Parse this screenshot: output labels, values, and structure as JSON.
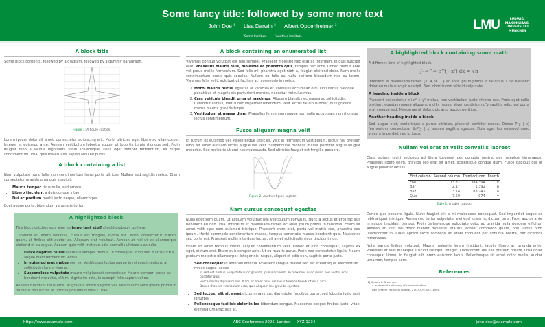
{
  "header": {
    "title": "Some fancy title: followed by some more text",
    "authors": [
      {
        "name": "John Doe",
        "sup": "1"
      },
      {
        "name": "Lisa Darwin",
        "sup": "2"
      },
      {
        "name": "Albert Oppenheimer",
        "sup": "2"
      }
    ],
    "institutes": [
      {
        "sup": "1",
        "name": "Some Institute"
      },
      {
        "sup": "2",
        "name": "Another Institute"
      }
    ],
    "logo": {
      "mark": "LMU",
      "lines": [
        "LUDWIG-",
        "MAXIMILIANS-",
        "UNIVERSITÄT",
        "MÜNCHEN"
      ]
    }
  },
  "col1": {
    "block1": {
      "title": "A block title",
      "intro": "Some block contents, followed by a diagram, followed by a dummy paragraph.",
      "fig_label": "Figure 1:",
      "fig_caption": "A figure caption.",
      "para": "Lorem ipsum dolor sit amet, consectetur adipiscing elit. Morbi ultricies eget libero ac ullamcorper. Integer et euismod ante. Aenean vestibulum lobortis augue, ut lobortis turpis rhoncus sed. Proin feugiat nibh a lacinia dignissim. Proin scelerisque, risus eget tempor fermentum, ex turpis condimentum urna, quis malesuada sapien arcu eu purus."
    },
    "block2": {
      "title": "A block containing a list",
      "intro": "Nam vulputate nunc felis, non condimentum lacus porta ultrices. Nullam sed sagittis metus. Etiam consectetur gravida urna quis suscipit.",
      "items": [
        {
          "b": "Mauris tempor",
          "t": " risus nulla, sed ornare"
        },
        {
          "b": "Libero tincidunt",
          "t": " a duis congue vitae"
        },
        {
          "b": "Dui ac pretium",
          "t": " morbi justo neque, ullamcorper"
        }
      ],
      "outro": "Eget augue porta, bibendum venenatis tortor."
    },
    "highlight": {
      "title": "A highlighted block",
      "p1a": "This block catches your eye, so ",
      "p1b": "important stuff",
      "p1c": " should probably go here.",
      "p2": "Curabitur eu libero vehicula, cursus est fringilla, luctus est. Morbi consectetur mauris quam, at finibus elit auctor ac. Aliquam erat volutpat. Aenean at nisl ut ex ullamcorper eleifend et eu augue. Aenean quis velit tristique odio convallis ultrices a ac odio.",
      "items": [
        {
          "b": "Fusce dapibus tellus",
          "t": " vel tellus semper finibus. In consequat, nibh sed mattis luctus, augue diam fermentum lectus."
        },
        {
          "b": "In euismod erat metus",
          "t": " non ex. Vestibulum luctus augue in mi condimentum, at sollicitudin lorem viverra."
        },
        {
          "b": "Suspendisse vulputate",
          "t": " mauris vel placerat consectetur. Mauris semper, purus ac hendrerit molestie, elit mi dignissim odio, in suscipit felis sapien vel ex."
        }
      ],
      "p3": "Aenean tincidunt risus eros, at gravida lorem sagittis vel. Vestibulum ante ipsum primis in faucibus orci luctus et ultrices posuere cubilia Curae."
    }
  },
  "col2": {
    "block1": {
      "title": "A block containing an enumerated list",
      "p_a": "Vivamus congue volutpat elit non semper. Praesent molestie nec erat ac interdum. In quis suscipit erat. ",
      "p_b": "Phasellus mauris felis, molestie ac pharetra quis",
      "p_c": ", tempus nec ante. Donec finibus ante vel purus mollis fermentum. Sed felis mi, pharetra eget nibh a, feugiat eleifend dolor. Nam mollis condimentum purus quis sodales. Nullam eu felis eu nulla eleifend bibendum nec eu lorem. Vivamus felis velit, volutpat ut facilisis ac, commodo in metus.",
      "items": [
        {
          "b": "Morbi mauris purus",
          "t": ", egestas at vehicula et, convallis accumsan orci. Orci varius natoque penatibus et magnis dis parturient montes, nascetur ridiculus mus."
        },
        {
          "b": "Cras vehicula blandit urna ut maximus",
          "t": ". Aliquam blandit nec massa ac sollicitudin. Curabitur cursus, metus nec imperdiet bibendum, velit lectus faucibus dolor, quis gravida metus mauris gravida turpis."
        },
        {
          "b": "Vestibulum et massa diam",
          "t": ". Phasellus fermentum augue non nulla accumsan, non rhoncus lectus condimentum."
        }
      ]
    },
    "block2": {
      "title": "Fusce aliquam magna velit",
      "para": "Et rutrum ex euismod vel. Pellentesque ultricies, velit in fermentum vestibulum, lectus nisi pretium nibh, sit amet aliquam lectus augue vel velit. Suspendisse rhoncus massa porttitor augue feugiat molestie. Sed molestie ut orci nec malesuada. Sed ultricies feugiat est fringilla posuere.",
      "fig_label": "Figure 2:",
      "fig_caption": "Another figure caption."
    },
    "block3": {
      "title": "Nam cursus consequat egestas",
      "p1": "Nulla eget sem quam. Ut aliquam volutpat nisi vestibulum convallis. Nunc a lectus et eros facilisis hendrerit eu non urna. Interdum et malesuada fames ac ante ipsum primis in faucibus. Etiam sit amet velit eget sem euismod tristique. Praesent enim erat, porta vel mattis sed, pharetra sed ipsum. Morbi commodo condimentum massa, tempus venenatis massa hendrerit quis. Maecenas sed porta est. Praesent mollis interdum lectus, sit amet sollicitudin risus tincidunt non.",
      "p2": "Etiam sit amet tempus lorem, aliquet condimentum velit. Donec et nibh consequat, sagittis ex eget, dictum orci. Etiam quis semper ante. Ut eu mauris purus. Proin nec consectetur ligula. Mauris pretium molestie ullamcorper. Integer nisi neque, aliquet et odio non, sagittis porta justo.",
      "items": [
        {
          "b": "Sed consequat",
          "t": " id ante vel efficitur. Praesent congue massa sed est scelerisque, elementum mollis augue iaculis.",
          "sub": [
            "In sed est finibus, vulputate nunc gravida, pulvinar lorem. In maximus nunc dolor, sed auctor eros porttitor quis.",
            "Fusce ornare dignissim nisi. Nam sit amet risus vel lacus tempor tincidunt eu a arcu.",
            "Donec rhoncus vestibulum erat, quis aliquam leo gravida egestas."
          ]
        },
        {
          "b": "Sed luctus, elit sit amet",
          "t": " dictum maximus, diam dolor faucibus purus, sed lobortis justo erat id turpis."
        },
        {
          "b": "Pellentesque facilisis dolor in leo",
          "t": " bibendum congue. Maecenas congue finibus justo, vitae eleifend urna facilisis at."
        }
      ]
    }
  },
  "col3": {
    "math": {
      "title": "A highlighted block containing some math",
      "intro": "A different kind of highlighted block.",
      "eq": "∫₋∞^∞ e^(−x²) dx = √π",
      "p1": "Interdum et malesuada fames {1, 4, 9, …} ac ante ipsum primis in faucibus. Cras eleifend dolor eu nulla suscipit suscipit. Sed lobortis non felis id vulputate.",
      "h1": "A heading inside a block",
      "p2": "Praesent consectetur mi x² + y² metus, nec vestibulum justo viverra nec. Proin eget nulla pretium, egestas magna aliquam, mollis neque. Vivamus dictum uᵀv sagittis odio, vel porta erat congue sed. Maecenas ut dolor quis arcu auctor porttitor.",
      "h2": "Another heading inside a block",
      "p3": "Sed augue erat, scelerisque a purus ultricies, placerat porttitor neque. Donec P(y | x) fermentum consectetur ∇ₓP(y | x) sapien sagittis egestas. Duis eget leo euismod nunc viverra imperdiet nec id justo."
    },
    "table_block": {
      "title": "Nullam vel erat at velit convallis laoreet",
      "para": "Class aptent taciti sociosqu ad litora torquent per conubia nostra, per inceptos himenaeos. Phasellus libero enim, gravida sed erat sit amet, scelerisque congue diam. Fusce dapibus dui ut augue pulvinar iaculis.",
      "headers": [
        "First column",
        "Second column",
        "Third column",
        "Fourth"
      ],
      "rows": [
        [
          "Foo",
          "13.37",
          "384,394",
          "α"
        ],
        [
          "Bar",
          "2.17",
          "1,392",
          "β"
        ],
        [
          "Baz",
          "3.14",
          "83,742",
          "δ"
        ],
        [
          "Qux",
          "7.59",
          "974",
          "γ"
        ]
      ],
      "tab_label": "Table 1:",
      "tab_caption": "A table caption.",
      "p2": "Donec quis posuere ligula. Nunc feugiat elit a mi malesuada consequat. Sed imperdiet augue ac nibh aliquet tristique. Aenean eu tortor vulputate, eleifend lorem in, dictum urna. Proin auctor ante in augue tincidunt tempor. Proin pellentesque vulputate odio, ac gravida nulla posuere efficitur. Aenean at velit vel dolor blandit molestie. Mauris laoreet commodo quam, non luctus nibh ullamcorper in. Class aptent taciti sociosqu ad litora torquent per conubia nostra, per inceptos himenaeos.",
      "p3": "Nulla varius finibus volutpat. Mauris molestie lorem tincidunt, iaculis libero at, gravida ante. Phasellus at felis eu neque suscipit suscipit. Integer ullamcorper, dui nec pretium ornare, urna dolor consequat libero, in feugiat elit lorem euismod lacus. Pellentesque sit amet dolor mollis, auctor urna non, tempus sem."
    },
    "references": {
      "title": "References",
      "items": [
        {
          "num": "[1]",
          "author": "Claude E. Shannon.",
          "title": "A mathematical theory of communication.",
          "journal": "Bell System Technical Journal, 27(3):379–423, 1948."
        }
      ]
    }
  },
  "footer": {
    "left": "https://www.example.com",
    "center": "ABC Conference 2025, London — XYZ-1234",
    "right": "john.doe@example.com"
  },
  "colors": {
    "primary": "#008c3a",
    "heading": "#16904a",
    "highlight_bg": "#a0d2b0",
    "math_block_bg": "#c9c9c9"
  }
}
